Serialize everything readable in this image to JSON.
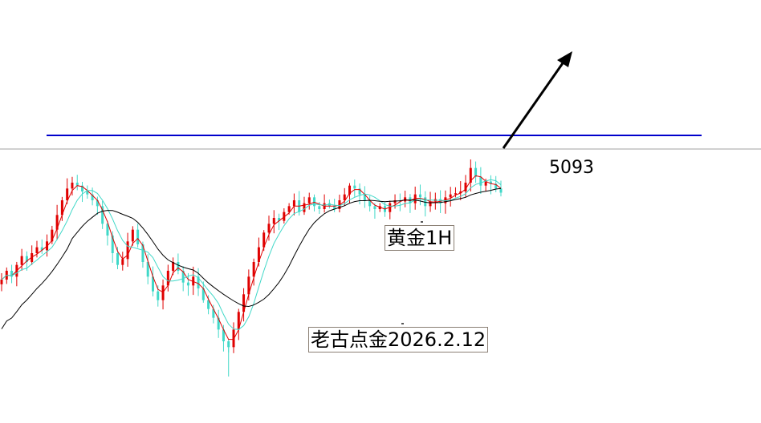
{
  "chart_data": {
    "type": "candlestick",
    "symbol_label": "黄金1H",
    "author_label": "老古点金2026.2.12",
    "price_label": "5093",
    "resistance_line_color": "#0000cc",
    "current_price_line_color": "#a0a0a0",
    "up_color": "#e00000",
    "down_color": "#40d8c8",
    "ma_short_color": "#e00000",
    "ma_mid_color": "#40d8c8",
    "ma_long_color": "#000000",
    "arrow_color": "#000000",
    "arrow_direction": "up-right",
    "grid": false,
    "close_series": [
      4945,
      4960,
      4950,
      4970,
      4985,
      4975,
      4990,
      5000,
      4995,
      5010,
      5030,
      5055,
      5080,
      5100,
      5110,
      5105,
      5095,
      5090,
      5080,
      5070,
      5040,
      5020,
      4990,
      4970,
      4980,
      5010,
      5030,
      5005,
      4975,
      4950,
      4925,
      4910,
      4935,
      4960,
      4975,
      4960,
      4940,
      4935,
      4950,
      4930,
      4910,
      4895,
      4880,
      4860,
      4840,
      4830,
      4860,
      4890,
      4920,
      4950,
      4975,
      5000,
      5025,
      5040,
      5050,
      5045,
      5060,
      5070,
      5080,
      5060,
      5075,
      5085,
      5070,
      5065,
      5075,
      5070,
      5065,
      5080,
      5090,
      5105,
      5100,
      5090,
      5080,
      5070,
      5065,
      5070,
      5060,
      5075,
      5080,
      5078,
      5085,
      5075,
      5090,
      5085,
      5070,
      5078,
      5082,
      5075,
      5085,
      5090,
      5092,
      5095,
      5110,
      5135,
      5120,
      5105,
      5112,
      5108,
      5100,
      5093
    ]
  }
}
